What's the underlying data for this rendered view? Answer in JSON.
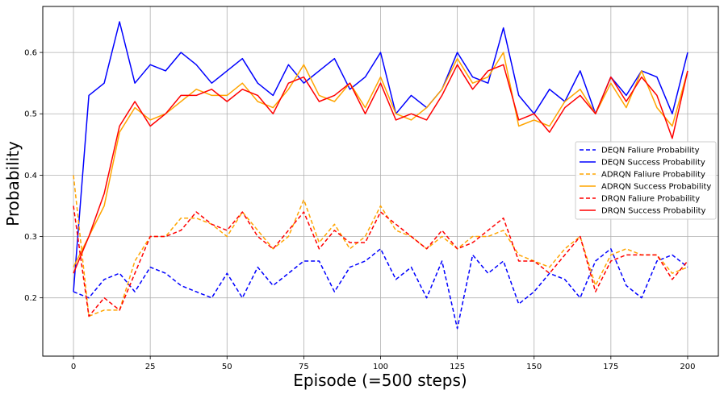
{
  "chart_data": {
    "type": "line",
    "title": "",
    "xlabel": "Episode (=500 steps)",
    "ylabel": "Probability",
    "xlim": [
      -10,
      210
    ],
    "ylim": [
      0.105,
      0.675
    ],
    "xticks": [
      0,
      25,
      50,
      75,
      100,
      125,
      150,
      175,
      200
    ],
    "yticks": [
      0.2,
      0.3,
      0.4,
      0.5,
      0.6
    ],
    "grid": true,
    "legend_position": "center-right",
    "series": [
      {
        "name": "DEQN Faliure Probability",
        "color": "#0000ff",
        "dash": "dashed",
        "x0": 0,
        "dx": 5,
        "values": [
          0.21,
          0.2,
          0.23,
          0.24,
          0.21,
          0.25,
          0.24,
          0.22,
          0.21,
          0.2,
          0.24,
          0.2,
          0.25,
          0.22,
          0.24,
          0.26,
          0.26,
          0.21,
          0.25,
          0.26,
          0.28,
          0.23,
          0.25,
          0.2,
          0.26,
          0.15,
          0.27,
          0.24,
          0.26,
          0.19,
          0.21,
          0.24,
          0.23,
          0.2,
          0.26,
          0.28,
          0.22,
          0.2,
          0.26,
          0.27,
          0.25
        ]
      },
      {
        "name": "DEQN Success Probability",
        "color": "#0000ff",
        "dash": "solid",
        "x0": 0,
        "dx": 5,
        "values": [
          0.21,
          0.53,
          0.55,
          0.65,
          0.55,
          0.58,
          0.57,
          0.6,
          0.58,
          0.55,
          0.57,
          0.59,
          0.55,
          0.53,
          0.58,
          0.55,
          0.57,
          0.59,
          0.54,
          0.56,
          0.6,
          0.5,
          0.53,
          0.51,
          0.54,
          0.6,
          0.56,
          0.55,
          0.64,
          0.53,
          0.5,
          0.54,
          0.52,
          0.57,
          0.5,
          0.56,
          0.53,
          0.57,
          0.56,
          0.5,
          0.6
        ]
      },
      {
        "name": "ADRQN Faliure Probability",
        "color": "#ffa500",
        "dash": "dashed",
        "x0": 0,
        "dx": 5,
        "values": [
          0.4,
          0.17,
          0.18,
          0.18,
          0.26,
          0.3,
          0.3,
          0.33,
          0.33,
          0.32,
          0.3,
          0.34,
          0.31,
          0.28,
          0.3,
          0.36,
          0.29,
          0.32,
          0.28,
          0.3,
          0.35,
          0.31,
          0.3,
          0.28,
          0.3,
          0.28,
          0.3,
          0.3,
          0.31,
          0.27,
          0.26,
          0.25,
          0.28,
          0.3,
          0.22,
          0.27,
          0.28,
          0.27,
          0.27,
          0.24,
          0.25
        ]
      },
      {
        "name": "ADRQN Success Probability",
        "color": "#ffa500",
        "dash": "solid",
        "x0": 0,
        "dx": 5,
        "values": [
          0.25,
          0.3,
          0.35,
          0.47,
          0.51,
          0.49,
          0.5,
          0.52,
          0.54,
          0.53,
          0.53,
          0.55,
          0.52,
          0.51,
          0.54,
          0.58,
          0.53,
          0.52,
          0.55,
          0.51,
          0.56,
          0.5,
          0.49,
          0.51,
          0.54,
          0.59,
          0.55,
          0.56,
          0.6,
          0.48,
          0.49,
          0.48,
          0.52,
          0.54,
          0.5,
          0.55,
          0.51,
          0.57,
          0.51,
          0.48,
          0.57
        ]
      },
      {
        "name": "DRQN Faliure Probability",
        "color": "#ff0000",
        "dash": "dashed",
        "x0": 0,
        "dx": 5,
        "values": [
          0.35,
          0.17,
          0.2,
          0.18,
          0.24,
          0.3,
          0.3,
          0.31,
          0.34,
          0.32,
          0.31,
          0.34,
          0.3,
          0.28,
          0.31,
          0.34,
          0.28,
          0.31,
          0.29,
          0.29,
          0.34,
          0.32,
          0.3,
          0.28,
          0.31,
          0.28,
          0.29,
          0.31,
          0.33,
          0.26,
          0.26,
          0.24,
          0.27,
          0.3,
          0.21,
          0.26,
          0.27,
          0.27,
          0.27,
          0.23,
          0.26
        ]
      },
      {
        "name": "DRQN Success Probability",
        "color": "#ff0000",
        "dash": "solid",
        "x0": 0,
        "dx": 5,
        "values": [
          0.24,
          0.3,
          0.37,
          0.48,
          0.52,
          0.48,
          0.5,
          0.53,
          0.53,
          0.54,
          0.52,
          0.54,
          0.53,
          0.5,
          0.55,
          0.56,
          0.52,
          0.53,
          0.55,
          0.5,
          0.55,
          0.49,
          0.5,
          0.49,
          0.53,
          0.58,
          0.54,
          0.57,
          0.58,
          0.49,
          0.5,
          0.47,
          0.51,
          0.53,
          0.5,
          0.56,
          0.52,
          0.56,
          0.53,
          0.46,
          0.57
        ]
      }
    ]
  }
}
